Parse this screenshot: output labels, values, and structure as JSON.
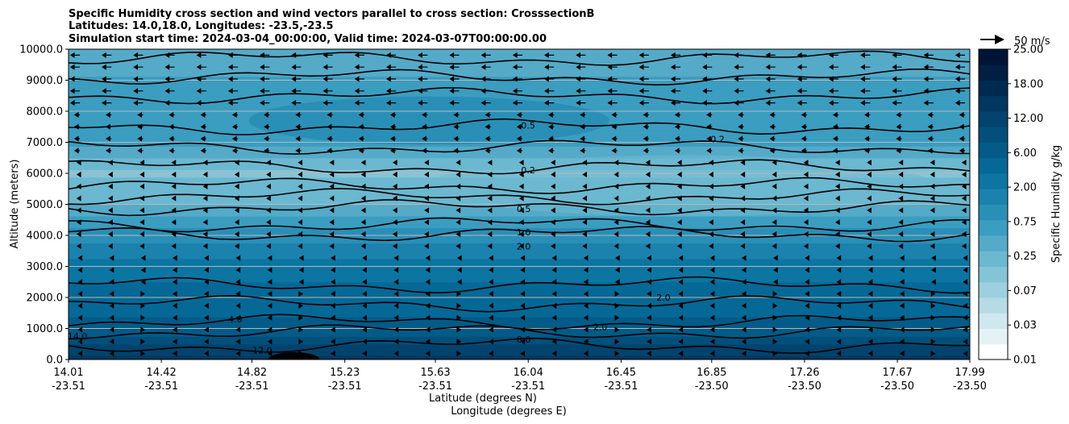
{
  "chart_data": {
    "type": "heatmap",
    "title_lines": [
      "Specific Humidity cross section and wind vectors parallel to cross section: CrosssectionB",
      "Latitudes: 14.0,18.0, Longitudes: -23.5,-23.5",
      "Simulation start time: 2024-03-04_00:00:00, Valid time: 2024-03-07T00:00:00.00"
    ],
    "xlabel_lines": [
      "Latitude (degrees N)",
      "Longitude (degrees E)"
    ],
    "ylabel": "Altitude (meters)",
    "colorbar_label": "Specific Humidity g/kg",
    "quiver_key": "50 m/s",
    "x_ticks": [
      {
        "lat": "14.01",
        "lon": "-23.51"
      },
      {
        "lat": "14.42",
        "lon": "-23.51"
      },
      {
        "lat": "14.82",
        "lon": "-23.51"
      },
      {
        "lat": "15.23",
        "lon": "-23.51"
      },
      {
        "lat": "15.63",
        "lon": "-23.51"
      },
      {
        "lat": "16.04",
        "lon": "-23.51"
      },
      {
        "lat": "16.45",
        "lon": "-23.51"
      },
      {
        "lat": "16.85",
        "lon": "-23.50"
      },
      {
        "lat": "17.26",
        "lon": "-23.50"
      },
      {
        "lat": "17.67",
        "lon": "-23.50"
      },
      {
        "lat": "17.99",
        "lon": "-23.50"
      }
    ],
    "y_ticks": [
      "0.0",
      "1000.0",
      "2000.0",
      "3000.0",
      "4000.0",
      "5000.0",
      "6000.0",
      "7000.0",
      "8000.0",
      "9000.0",
      "10000.0"
    ],
    "y_range": [
      0,
      10000
    ],
    "x_range": [
      14.01,
      17.99
    ],
    "grid": "horizontal",
    "colorbar_ticks": [
      "0.01",
      "0.03",
      "0.07",
      "0.25",
      "0.75",
      "2.00",
      "6.00",
      "12.00",
      "18.00",
      "25.00"
    ],
    "colorbar_colors": [
      "#ffffff",
      "#e5f2f5",
      "#cfe7ee",
      "#b6dbe6",
      "#9ccfdf",
      "#84c4d7",
      "#6bb8d0",
      "#55aac8",
      "#3b9dc0",
      "#2a8fb7",
      "#1a82ad",
      "#0c75a2",
      "#066896",
      "#045b88",
      "#034f7b",
      "#03436d",
      "#02375f",
      "#012a50",
      "#011f42",
      "#001536"
    ],
    "contour_labels": [
      "0.2",
      "0.5",
      "1.0",
      "2.0",
      "4.0",
      "8.0",
      "12.0",
      "14.0"
    ],
    "humidity_profile": [
      {
        "altitude": 0,
        "q": 14.0
      },
      {
        "altitude": 500,
        "q": 10.0
      },
      {
        "altitude": 1000,
        "q": 6.0
      },
      {
        "altitude": 2000,
        "q": 4.0
      },
      {
        "altitude": 3000,
        "q": 2.5
      },
      {
        "altitude": 4000,
        "q": 1.0
      },
      {
        "altitude": 5000,
        "q": 0.3
      },
      {
        "altitude": 6000,
        "q": 0.15
      },
      {
        "altitude": 7000,
        "q": 0.6
      },
      {
        "altitude": 8000,
        "q": 0.8
      },
      {
        "altitude": 9000,
        "q": 0.5
      },
      {
        "altitude": 10000,
        "q": 0.3
      }
    ]
  }
}
